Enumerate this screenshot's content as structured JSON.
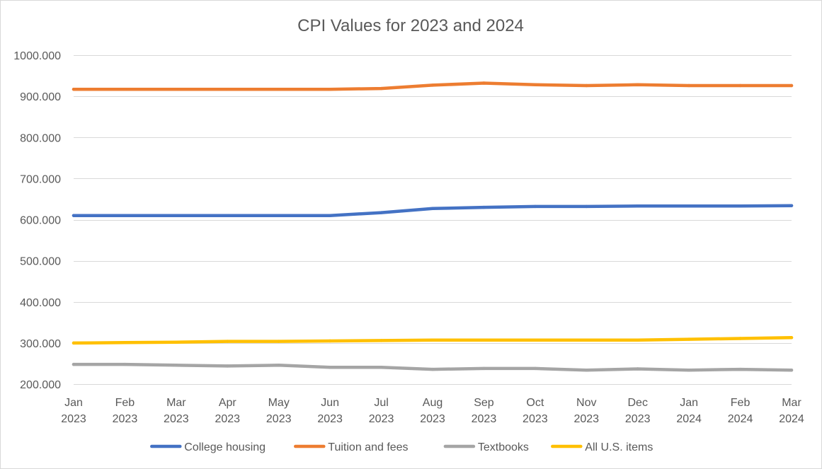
{
  "chart_data": {
    "type": "line",
    "title": "CPI Values for 2023 and 2024",
    "xlabel": "",
    "ylabel": "",
    "categories": [
      [
        "Jan",
        "2023"
      ],
      [
        "Feb",
        "2023"
      ],
      [
        "Mar",
        "2023"
      ],
      [
        "Apr",
        "2023"
      ],
      [
        "May",
        "2023"
      ],
      [
        "Jun",
        "2023"
      ],
      [
        "Jul",
        "2023"
      ],
      [
        "Aug",
        "2023"
      ],
      [
        "Sep",
        "2023"
      ],
      [
        "Oct",
        "2023"
      ],
      [
        "Nov",
        "2023"
      ],
      [
        "Dec",
        "2023"
      ],
      [
        "Jan",
        "2024"
      ],
      [
        "Feb",
        "2024"
      ],
      [
        "Mar",
        "2024"
      ]
    ],
    "ylim": [
      200,
      1000
    ],
    "yticks": [
      200,
      300,
      400,
      500,
      600,
      700,
      800,
      900,
      1000
    ],
    "ytick_labels": [
      "200.000",
      "300.000",
      "400.000",
      "500.000",
      "600.000",
      "700.000",
      "800.000",
      "900.000",
      "1000.000"
    ],
    "grid": true,
    "legend_position": "bottom",
    "series": [
      {
        "name": "College housing",
        "color": "#4472C4",
        "values": [
          610,
          610,
          610,
          610,
          610,
          610,
          617,
          627,
          630,
          632,
          632,
          633,
          633,
          633,
          634
        ]
      },
      {
        "name": "Tuition and fees",
        "color": "#ED7D31",
        "values": [
          917,
          917,
          917,
          917,
          917,
          917,
          919,
          927,
          932,
          928,
          926,
          928,
          926,
          926,
          926
        ]
      },
      {
        "name": "Textbooks",
        "color": "#A5A5A5",
        "values": [
          248,
          248,
          246,
          244,
          246,
          241,
          241,
          236,
          238,
          238,
          234,
          237,
          234,
          236,
          234
        ]
      },
      {
        "name": "All U.S. items",
        "color": "#FFC000",
        "values": [
          300,
          301,
          302,
          304,
          304,
          305,
          306,
          307,
          307,
          307,
          307,
          307,
          309,
          311,
          313
        ]
      }
    ]
  }
}
